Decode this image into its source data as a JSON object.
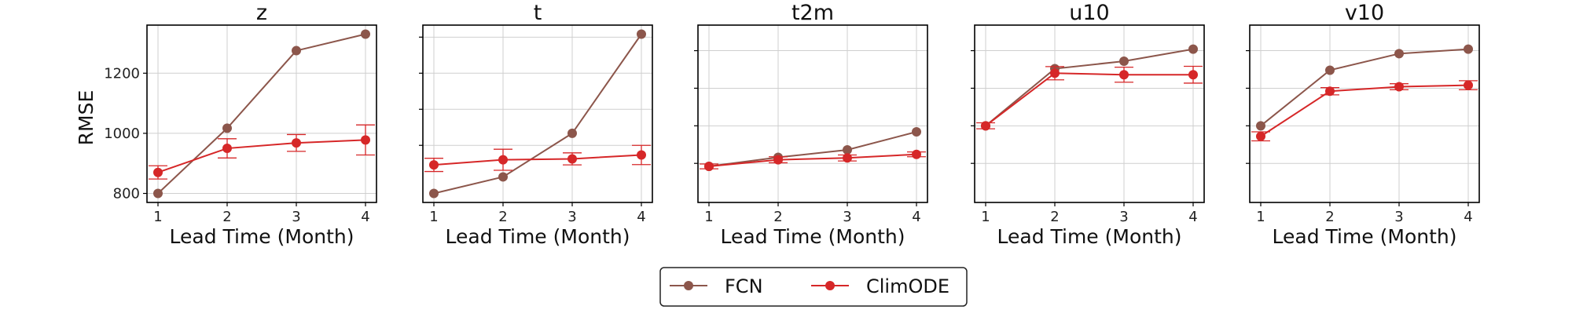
{
  "colors": {
    "FCN": "#8c564b",
    "ClimODE": "#d62728",
    "grid": "#cfcfcf",
    "axis": "#000000"
  },
  "chart_data": [
    {
      "type": "line",
      "title": "z",
      "xlabel": "Lead Time (Month)",
      "ylabel": "RMSE",
      "x": [
        1,
        2,
        3,
        4
      ],
      "xticks": [
        "1",
        "2",
        "3",
        "4"
      ],
      "yticks": [
        800,
        1000,
        1200
      ],
      "ytick_labels": [
        "800",
        "1000",
        "1200"
      ],
      "ylim": [
        770,
        1360
      ],
      "grid": true,
      "series": [
        {
          "name": "FCN",
          "values": [
            800,
            1017,
            1275,
            1330
          ]
        },
        {
          "name": "ClimODE",
          "values": [
            870,
            950,
            968,
            978
          ],
          "error": [
            22,
            32,
            28,
            50
          ]
        }
      ]
    },
    {
      "type": "line",
      "title": "t",
      "xlabel": "Lead Time (Month)",
      "x": [
        1,
        2,
        3,
        4
      ],
      "xticks": [
        "1",
        "2",
        "3",
        "4"
      ],
      "yticks": [
        960,
        1080,
        1200,
        1320
      ],
      "ytick_labels": [
        "",
        "",
        "",
        ""
      ],
      "ylim": [
        770,
        1360
      ],
      "grid": true,
      "series": [
        {
          "name": "FCN",
          "values": [
            800,
            855,
            1000,
            1330
          ]
        },
        {
          "name": "ClimODE",
          "values": [
            895,
            912,
            915,
            928
          ],
          "error": [
            22,
            35,
            20,
            32
          ]
        }
      ]
    },
    {
      "type": "line",
      "title": "t2m",
      "xlabel": "Lead Time (Month)",
      "x": [
        1,
        2,
        3,
        4
      ],
      "xticks": [
        "1",
        "2",
        "3",
        "4"
      ],
      "yticks": [
        900,
        1025,
        1150,
        1275
      ],
      "ytick_labels": [
        "",
        "",
        "",
        ""
      ],
      "ylim": [
        770,
        1360
      ],
      "grid": true,
      "series": [
        {
          "name": "FCN",
          "values": [
            890,
            920,
            945,
            1005
          ]
        },
        {
          "name": "ClimODE",
          "values": [
            890,
            912,
            918,
            930
          ],
          "error": [
            8,
            10,
            10,
            8
          ]
        }
      ]
    },
    {
      "type": "line",
      "title": "u10",
      "xlabel": "Lead Time (Month)",
      "x": [
        1,
        2,
        3,
        4
      ],
      "xticks": [
        "1",
        "2",
        "3",
        "4"
      ],
      "yticks": [
        900,
        1025,
        1150,
        1275
      ],
      "ytick_labels": [
        "",
        "",
        "",
        ""
      ],
      "ylim": [
        770,
        1360
      ],
      "grid": true,
      "series": [
        {
          "name": "FCN",
          "values": [
            1025,
            1215,
            1240,
            1280
          ]
        },
        {
          "name": "ClimODE",
          "values": [
            1025,
            1200,
            1195,
            1195
          ],
          "error": [
            10,
            22,
            25,
            28
          ]
        }
      ]
    },
    {
      "type": "line",
      "title": "v10",
      "xlabel": "Lead Time (Month)",
      "x": [
        1,
        2,
        3,
        4
      ],
      "xticks": [
        "1",
        "2",
        "3",
        "4"
      ],
      "yticks": [
        900,
        1025,
        1150,
        1275
      ],
      "ytick_labels": [
        "",
        "",
        "",
        ""
      ],
      "ylim": [
        770,
        1360
      ],
      "grid": true,
      "series": [
        {
          "name": "FCN",
          "values": [
            1025,
            1210,
            1265,
            1280
          ]
        },
        {
          "name": "ClimODE",
          "values": [
            990,
            1140,
            1155,
            1160
          ],
          "error": [
            15,
            12,
            10,
            15
          ]
        }
      ]
    }
  ],
  "legend": {
    "placement": "bottom-center",
    "items": [
      "FCN",
      "ClimODE"
    ]
  }
}
